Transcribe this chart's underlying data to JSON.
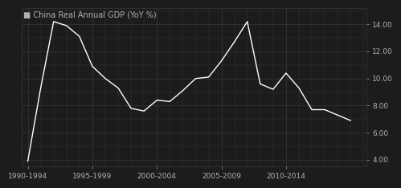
{
  "title": "China Real Annual GDP (YoY %)",
  "background_color": "#1c1c1c",
  "grid_color": "#383838",
  "line_color": "#ffffff",
  "text_color": "#b0b0b0",
  "years": [
    1990,
    1991,
    1992,
    1993,
    1994,
    1995,
    1996,
    1997,
    1998,
    1999,
    2000,
    2001,
    2002,
    2003,
    2004,
    2005,
    2006,
    2007,
    2008,
    2009,
    2010,
    2011,
    2012,
    2013,
    2014,
    2015
  ],
  "values": [
    3.9,
    9.3,
    14.2,
    13.9,
    13.1,
    10.9,
    10.0,
    9.3,
    7.8,
    7.6,
    8.4,
    8.3,
    9.1,
    10.0,
    10.1,
    11.3,
    12.7,
    14.2,
    9.6,
    9.2,
    10.4,
    9.3,
    7.7,
    7.7,
    7.3,
    6.9
  ],
  "xtick_positions": [
    1990,
    1995,
    2000,
    2005,
    2010
  ],
  "xtick_labels": [
    "1990-1994",
    "1995-1999",
    "2000-2004",
    "2005-2009",
    "2010-2014"
  ],
  "xlim": [
    1989.5,
    2016.2
  ],
  "ylim": [
    3.5,
    15.2
  ],
  "ytick_values": [
    4.0,
    6.0,
    8.0,
    10.0,
    12.0,
    14.0
  ],
  "title_fontsize": 7.0,
  "tick_fontsize": 6.5
}
